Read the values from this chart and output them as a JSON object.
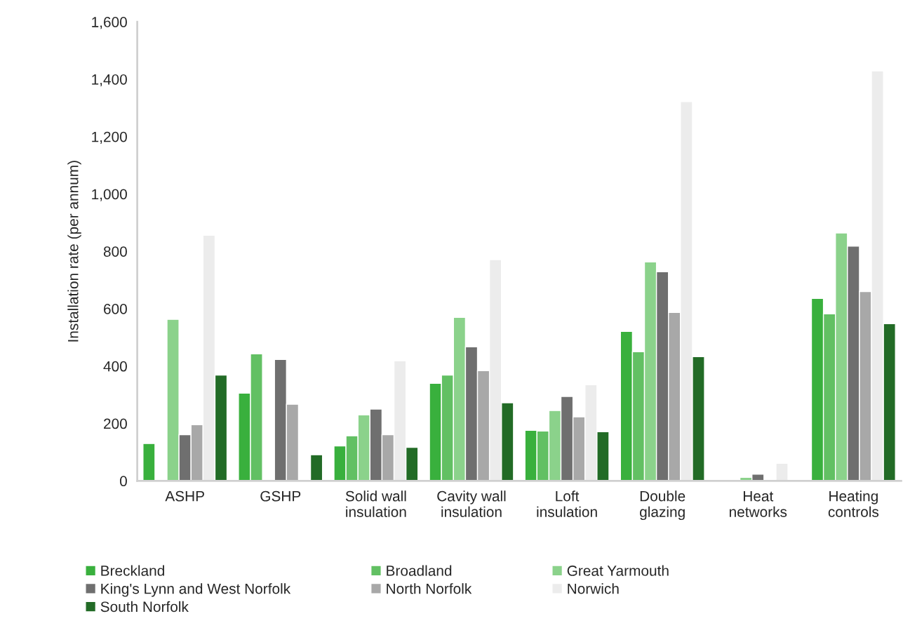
{
  "chart_data": {
    "type": "bar",
    "ylabel": "Installation rate (per annum)",
    "categories": [
      "ASHP",
      "GSHP",
      "Solid wall\ninsulation",
      "Cavity wall\ninsulation",
      "Loft\ninsulation",
      "Double\nglazing",
      "Heat\nnetworks",
      "Heating\ncontrols"
    ],
    "series": [
      {
        "name": "Breckland",
        "color": "#39b03d",
        "values": [
          130,
          306,
          122,
          340,
          176,
          521,
          null,
          636
        ]
      },
      {
        "name": "Broadland",
        "color": "#62c063",
        "values": [
          null,
          443,
          157,
          369,
          174,
          450,
          null,
          582
        ]
      },
      {
        "name": "Great Yarmouth",
        "color": "#8bd28b",
        "values": [
          563,
          null,
          230,
          570,
          245,
          763,
          12,
          864
        ]
      },
      {
        "name": "King's Lynn and West Norfolk",
        "color": "#6f6f6f",
        "values": [
          161,
          423,
          250,
          467,
          294,
          729,
          23,
          818
        ]
      },
      {
        "name": "North Norfolk",
        "color": "#a8a8a8",
        "values": [
          196,
          267,
          161,
          384,
          223,
          587,
          null,
          660
        ]
      },
      {
        "name": "Norwich",
        "color": "#ececec",
        "values": [
          856,
          null,
          418,
          771,
          335,
          1322,
          61,
          1429
        ]
      },
      {
        "name": "South Norfolk",
        "color": "#226b26",
        "values": [
          369,
          91,
          117,
          272,
          171,
          433,
          null,
          548
        ]
      }
    ],
    "ylim": [
      0,
      1600
    ],
    "yticks": [
      0,
      200,
      400,
      600,
      800,
      {
        "value": 1000,
        "label": "1,000"
      },
      {
        "value": 1200,
        "label": "1,200"
      },
      {
        "value": 1400,
        "label": "1,400"
      },
      {
        "value": 1600,
        "label": "1,600"
      }
    ],
    "grid": false,
    "legend": "bottom"
  }
}
